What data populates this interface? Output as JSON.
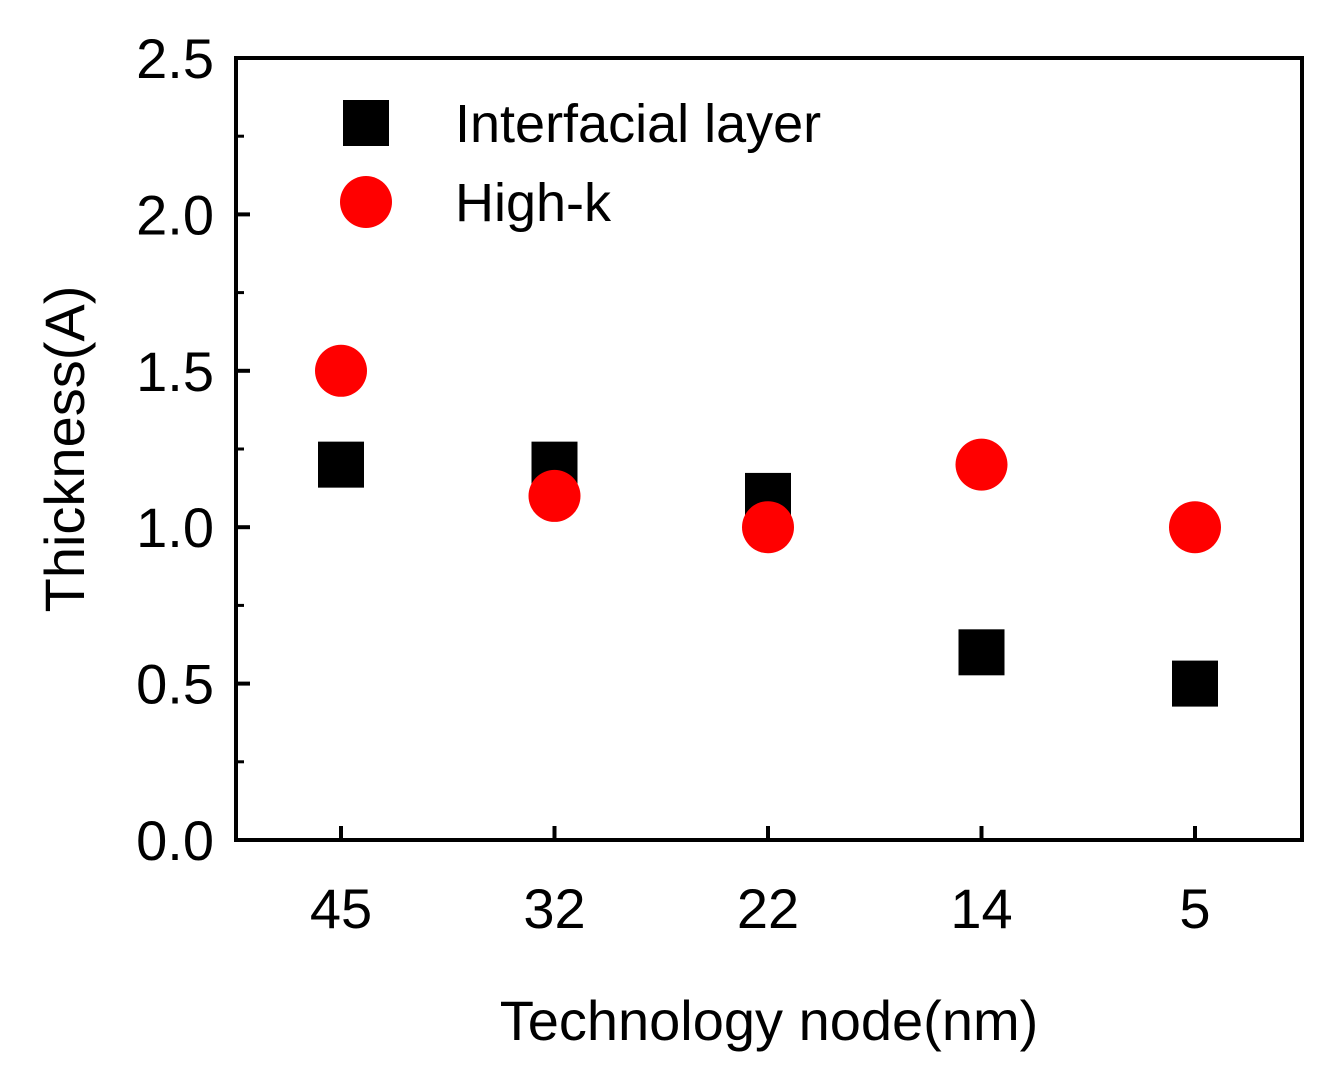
{
  "chart_data": {
    "type": "scatter",
    "title": "",
    "xlabel": "Technology node(nm)",
    "ylabel": "Thickness(A)",
    "categories": [
      "45",
      "32",
      "22",
      "14",
      "5"
    ],
    "ylim": [
      0,
      2.5
    ],
    "yticks": [
      "0.0",
      "0.5",
      "1.0",
      "1.5",
      "2.0",
      "2.5"
    ],
    "grid": false,
    "legend_position": "top-left",
    "series": [
      {
        "name": "Interfacial layer",
        "marker": "square",
        "color": "#000000",
        "values": [
          1.2,
          1.2,
          1.1,
          0.6,
          0.5
        ]
      },
      {
        "name": "High-k",
        "marker": "circle",
        "color": "#ff0000",
        "values": [
          1.5,
          1.1,
          1.0,
          1.2,
          1.0
        ]
      }
    ]
  }
}
